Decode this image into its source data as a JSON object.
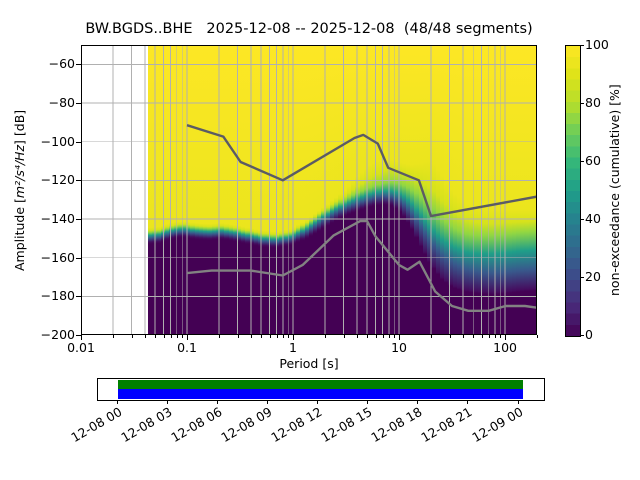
{
  "title": "BW.BGDS..BHE   2025-12-08 -- 2025-12-08  (48/48 segments)",
  "axes": {
    "xlabel": "Period [s]",
    "ylabel_prefix": "Amplitude [",
    "ylabel_math": "m²/s⁴/Hz",
    "ylabel_suffix": "] [dB]"
  },
  "colorbar": {
    "label": "non-exceedance (cumulative) [%]",
    "ticks": [
      0,
      20,
      40,
      60,
      80,
      100
    ]
  },
  "colors": {
    "viridis_anchors": [
      "#440154",
      "#482878",
      "#3e4a89",
      "#31688e",
      "#26828e",
      "#1f9e89",
      "#35b779",
      "#6dcd59",
      "#b4de2c",
      "#dfe318",
      "#fde725"
    ],
    "background_nodata": "#ffffff",
    "grid": "#b0b0b0",
    "high_noise_model_line": "#5b5b64",
    "low_noise_model_line": "#828282",
    "timeline_data_bar": "#008000",
    "timeline_segments_bar": "#0000ff"
  },
  "chart_data": {
    "type": "heatmap",
    "title": "BW.BGDS..BHE   2025-12-08 -- 2025-12-08  (48/48 segments)",
    "xlabel": "Period [s]",
    "ylabel": "Amplitude [m²/s⁴/Hz] [dB]",
    "xscale": "log",
    "xlim": [
      0.01,
      200
    ],
    "ylim": [
      -200,
      -50
    ],
    "grid": true,
    "x_tick_labels": [
      "0.01",
      "0.1",
      "1",
      "10",
      "100"
    ],
    "x_tick_values": [
      0.01,
      0.1,
      1,
      10,
      100
    ],
    "y_tick_values": [
      -60,
      -80,
      -100,
      -120,
      -140,
      -160,
      -180,
      -200
    ],
    "colorbar_label": "non-exceedance (cumulative) [%]",
    "colorbar_lim": [
      0,
      100
    ],
    "colorbar_tick_values": [
      0,
      20,
      40,
      60,
      80,
      100
    ],
    "data_period_range_s": [
      0.043,
      200
    ],
    "cumulative_distribution_quantiles_db": {
      "periods_s": [
        0.043,
        0.055,
        0.07,
        0.09,
        0.12,
        0.16,
        0.21,
        0.28,
        0.38,
        0.52,
        0.7,
        0.95,
        1.3,
        1.8,
        2.4,
        3.2,
        4.2,
        5.5,
        7.0,
        8.5,
        10.5,
        13,
        16,
        20,
        25,
        32,
        42,
        55,
        75,
        100,
        140,
        200
      ],
      "p02": [
        -152,
        -151.5,
        -149.5,
        -148.5,
        -149.5,
        -150,
        -149.5,
        -150.5,
        -152,
        -153.5,
        -154,
        -152.5,
        -149.5,
        -145,
        -140.5,
        -137,
        -134.5,
        -132.5,
        -131.5,
        -132,
        -136,
        -143,
        -153,
        -163,
        -170,
        -174.5,
        -176.5,
        -177.5,
        -178,
        -177.5,
        -176.5,
        -176
      ],
      "p25": [
        -150,
        -149.5,
        -147.5,
        -146.5,
        -147.5,
        -148,
        -147.5,
        -148.5,
        -150,
        -151.5,
        -152,
        -150.5,
        -147,
        -142,
        -137.5,
        -134,
        -131.5,
        -129.5,
        -128,
        -128.5,
        -131,
        -136.5,
        -144,
        -152,
        -158.5,
        -163,
        -166,
        -167.5,
        -168,
        -167.5,
        -166.5,
        -166
      ],
      "p50": [
        -148.5,
        -148,
        -146,
        -145,
        -146,
        -146.5,
        -146,
        -147,
        -148.5,
        -150,
        -150.5,
        -149,
        -145.5,
        -140,
        -135.5,
        -132,
        -129,
        -127,
        -125.5,
        -125.5,
        -127.5,
        -131.5,
        -138,
        -145,
        -150.5,
        -154.5,
        -157,
        -158,
        -158,
        -157.5,
        -156.5,
        -156
      ],
      "p75": [
        -147,
        -146.5,
        -144.5,
        -143.5,
        -144.5,
        -145,
        -144.5,
        -145.5,
        -147,
        -148.5,
        -149,
        -147.5,
        -143.5,
        -138,
        -133.5,
        -129.5,
        -126,
        -123.5,
        -121.5,
        -121,
        -122,
        -124.5,
        -128.5,
        -133.5,
        -139.5,
        -144.5,
        -147.5,
        -148.5,
        -148.5,
        -148,
        -147,
        -146.5
      ],
      "p90": [
        -146,
        -145.5,
        -143.5,
        -142.5,
        -143.5,
        -144,
        -143.5,
        -144.5,
        -146,
        -147.5,
        -148,
        -146.5,
        -142.5,
        -137,
        -132,
        -127.5,
        -122.5,
        -118.5,
        -115.5,
        -114.5,
        -115.5,
        -117.5,
        -120.5,
        -124,
        -130,
        -136,
        -140,
        -142,
        -142.5,
        -142,
        -141.5,
        -141
      ],
      "p98": [
        -144.5,
        -144,
        -142,
        -141,
        -142,
        -142.5,
        -142,
        -143,
        -144.5,
        -146,
        -146.5,
        -145,
        -141,
        -135.5,
        -130,
        -124.5,
        -117,
        -111.5,
        -109,
        -109.5,
        -111,
        -112,
        -111,
        -109.5,
        -117,
        -126,
        -131.5,
        -134,
        -135,
        -135,
        -135,
        -135
      ]
    },
    "noise_models": {
      "high_noise_model": {
        "periods_s": [
          0.1,
          0.22,
          0.32,
          0.8,
          3.8,
          4.6,
          6.3,
          7.9,
          15.4,
          20.0,
          200.0
        ],
        "db": [
          -91.5,
          -97.4,
          -110.5,
          -120.0,
          -98.1,
          -96.5,
          -101.0,
          -113.5,
          -120.0,
          -138.5,
          -128.4
        ]
      },
      "low_noise_model": {
        "periods_s": [
          0.1,
          0.17,
          0.4,
          0.8,
          1.24,
          2.4,
          4.3,
          5.0,
          6.0,
          10.0,
          12.0,
          15.6,
          21.9,
          31.6,
          45.0,
          70.0,
          101.0,
          154.0,
          200.0
        ],
        "db": [
          -168.0,
          -166.7,
          -166.7,
          -169.2,
          -163.7,
          -148.6,
          -141.1,
          -141.1,
          -149.0,
          -163.8,
          -166.2,
          -162.1,
          -177.5,
          -185.0,
          -187.5,
          -187.5,
          -185.0,
          -185.0,
          -185.9
        ]
      }
    }
  },
  "timeline": {
    "tick_labels": [
      "12-08 00",
      "12-08 03",
      "12-08 06",
      "12-08 09",
      "12-08 12",
      "12-08 15",
      "12-08 18",
      "12-08 21",
      "12-09 00"
    ]
  }
}
